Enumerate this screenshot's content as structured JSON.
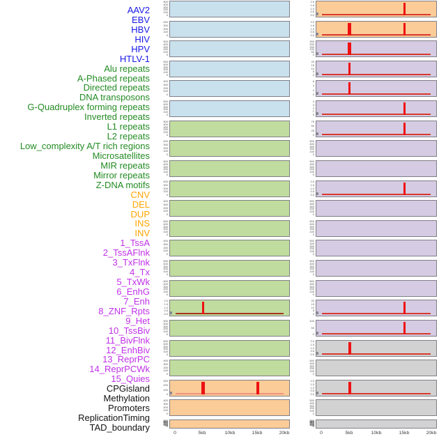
{
  "chart_data": {
    "type": "line",
    "title": "",
    "description": "Multi-panel genomic feature profile figure: 44 row labels and two columns of 22 sparkline panels each, signal near zero with red peak spikes, x axis 0-20kb",
    "x_axis": {
      "ticks": [
        "0",
        "5kb",
        "10kb",
        "15kb",
        "20kb"
      ],
      "range_kb": [
        0,
        20
      ]
    },
    "group_colors": {
      "virus": "#1919e6",
      "repeat": "#228B22",
      "sv": "#FFA500",
      "chromatin": "#C030E8",
      "other": "#111111"
    },
    "panel_bg_colors": {
      "blue": "#c9e1ed",
      "green": "#c0dc9e",
      "orange": "#fbcb98",
      "purple": "#d5cbe2",
      "gray": "#d2d2d2"
    },
    "spike_color": "#ee1111",
    "row_labels": [
      {
        "text": "AAV2",
        "group": "virus"
      },
      {
        "text": "EBV",
        "group": "virus"
      },
      {
        "text": "HBV",
        "group": "virus"
      },
      {
        "text": "HIV",
        "group": "virus"
      },
      {
        "text": "HPV",
        "group": "virus"
      },
      {
        "text": "HTLV-1",
        "group": "virus"
      },
      {
        "text": "Alu repeats",
        "group": "repeat"
      },
      {
        "text": "A-Phased repeats",
        "group": "repeat"
      },
      {
        "text": "Directed repeats",
        "group": "repeat"
      },
      {
        "text": "DNA transposons",
        "group": "repeat"
      },
      {
        "text": "G-Quadruplex forming repeats",
        "group": "repeat"
      },
      {
        "text": "Inverted repeats",
        "group": "repeat"
      },
      {
        "text": "L1 repeats",
        "group": "repeat"
      },
      {
        "text": "L2 repeats",
        "group": "repeat"
      },
      {
        "text": "Low_complexity A/T rich regions",
        "group": "repeat"
      },
      {
        "text": "Microsatellites",
        "group": "repeat"
      },
      {
        "text": "MIR repeats",
        "group": "repeat"
      },
      {
        "text": "Mirror repeats",
        "group": "repeat"
      },
      {
        "text": "Z-DNA motifs",
        "group": "repeat"
      },
      {
        "text": "CNV",
        "group": "sv"
      },
      {
        "text": "DEL",
        "group": "sv"
      },
      {
        "text": "DUP",
        "group": "sv"
      },
      {
        "text": "INS",
        "group": "sv"
      },
      {
        "text": "INV",
        "group": "sv"
      },
      {
        "text": "1_TssA",
        "group": "chromatin"
      },
      {
        "text": "2_TssAFlnk",
        "group": "chromatin"
      },
      {
        "text": "3_TxFlnk",
        "group": "chromatin"
      },
      {
        "text": "4_Tx",
        "group": "chromatin"
      },
      {
        "text": "5_TxWk",
        "group": "chromatin"
      },
      {
        "text": "6_EnhG",
        "group": "chromatin"
      },
      {
        "text": "7_Enh",
        "group": "chromatin"
      },
      {
        "text": "8_ZNF_Rpts",
        "group": "chromatin"
      },
      {
        "text": "9_Het",
        "group": "chromatin"
      },
      {
        "text": "10_TssBiv",
        "group": "chromatin"
      },
      {
        "text": "11_BivFlnk",
        "group": "chromatin"
      },
      {
        "text": "12_EnhBiv",
        "group": "chromatin"
      },
      {
        "text": "13_ReprPC",
        "group": "chromatin"
      },
      {
        "text": "14_ReprPCWk",
        "group": "chromatin"
      },
      {
        "text": "15_Quies",
        "group": "chromatin"
      },
      {
        "text": "CPGisland",
        "group": "other"
      },
      {
        "text": "Methylation",
        "group": "other"
      },
      {
        "text": "Promoters",
        "group": "other"
      },
      {
        "text": "ReplicationTiming",
        "group": "other"
      },
      {
        "text": "TAD_boundary",
        "group": "other"
      }
    ],
    "columns": [
      {
        "name": "left",
        "panels": [
          {
            "bg": "blue",
            "y_ticks": [
              "500",
              "400",
              "300",
              "200",
              "100",
              "0"
            ],
            "baseline": null,
            "spikes": []
          },
          {
            "bg": "blue",
            "y_ticks": [
              "400",
              "300",
              "200",
              "100",
              "0"
            ],
            "baseline": null,
            "spikes": []
          },
          {
            "bg": "blue",
            "y_ticks": [
              "500",
              "400",
              "300",
              "200",
              "100",
              "0"
            ],
            "baseline": null,
            "spikes": []
          },
          {
            "bg": "blue",
            "y_ticks": [
              "500",
              "400",
              "300",
              "200",
              "100",
              "0"
            ],
            "baseline": null,
            "spikes": []
          },
          {
            "bg": "blue",
            "y_ticks": [
              "400",
              "300",
              "200",
              "100",
              "0"
            ],
            "baseline": null,
            "spikes": []
          },
          {
            "bg": "blue",
            "y_ticks": [
              "500",
              "400",
              "300",
              "200",
              "100",
              "0"
            ],
            "baseline": null,
            "spikes": []
          },
          {
            "bg": "green",
            "y_ticks": [
              "500",
              "400",
              "300",
              "200",
              "100",
              "0"
            ],
            "baseline": null,
            "spikes": []
          },
          {
            "bg": "green",
            "y_ticks": [
              "400",
              "300",
              "200",
              "100",
              "0"
            ],
            "baseline": null,
            "spikes": []
          },
          {
            "bg": "green",
            "y_ticks": [
              "500",
              "400",
              "300",
              "200",
              "100",
              "0"
            ],
            "baseline": null,
            "spikes": []
          },
          {
            "bg": "green",
            "y_ticks": [
              "400",
              "300",
              "200",
              "100",
              "0"
            ],
            "baseline": null,
            "spikes": []
          },
          {
            "bg": "green",
            "y_ticks": [
              "400",
              "300",
              "200",
              "100",
              "0"
            ],
            "baseline": null,
            "spikes": []
          },
          {
            "bg": "green",
            "y_ticks": [
              "500",
              "400",
              "300",
              "200",
              "100",
              "0"
            ],
            "baseline": null,
            "spikes": []
          },
          {
            "bg": "green",
            "y_ticks": [
              "400",
              "300",
              "200",
              "100",
              "0"
            ],
            "baseline": null,
            "spikes": []
          },
          {
            "bg": "green",
            "y_ticks": [
              "500",
              "400",
              "300",
              "200",
              "100",
              "0"
            ],
            "baseline": null,
            "spikes": []
          },
          {
            "bg": "green",
            "y_ticks": [
              "500",
              "400",
              "300",
              "200",
              "100",
              "0"
            ],
            "baseline": null,
            "spikes": []
          },
          {
            "bg": "green",
            "y_ticks": [
              "2.0",
              "1.5",
              "1.0",
              "0.5",
              "0.0"
            ],
            "baseline": "#a93323",
            "spikes": [
              {
                "kb": 5,
                "w": 3
              }
            ]
          },
          {
            "bg": "green",
            "y_ticks": [
              "500",
              "400",
              "300",
              "200",
              "100",
              "0"
            ],
            "baseline": null,
            "spikes": []
          },
          {
            "bg": "green",
            "y_ticks": [
              "500",
              "400",
              "300",
              "200",
              "100",
              "0"
            ],
            "baseline": null,
            "spikes": []
          },
          {
            "bg": "green",
            "y_ticks": [
              "400",
              "300",
              "200",
              "100",
              "0"
            ],
            "baseline": null,
            "spikes": []
          },
          {
            "bg": "orange",
            "y_ticks": [
              "300",
              "200",
              "100",
              "0"
            ],
            "baseline": "#f0907e",
            "spikes": [
              {
                "kb": 5,
                "w": 5
              },
              {
                "kb": 15,
                "w": 4
              }
            ]
          },
          {
            "bg": "orange",
            "y_ticks": [
              "400",
              "300",
              "200",
              "100",
              "0"
            ],
            "baseline": null,
            "spikes": []
          },
          {
            "bg": "orange",
            "y_ticks": [
              "500",
              "450",
              "400",
              "350",
              "300",
              "250",
              "200",
              "150",
              "100",
              "50",
              "0"
            ],
            "baseline": null,
            "spikes": []
          }
        ]
      },
      {
        "name": "right",
        "panels": [
          {
            "bg": "orange",
            "y_ticks": [
              "2.0",
              "1.5",
              "1.0",
              "0.5",
              "0.0"
            ],
            "baseline": "#d8392b",
            "spikes": [
              {
                "kb": 15,
                "w": 2.5
              }
            ]
          },
          {
            "bg": "orange",
            "y_ticks": [
              "2.0",
              "1.5",
              "1.0",
              "0.5",
              "0.0"
            ],
            "baseline": "#d8392b",
            "spikes": [
              {
                "kb": 5,
                "w": 5
              },
              {
                "kb": 15,
                "w": 3.5
              }
            ]
          },
          {
            "bg": "purple",
            "y_ticks": [
              "250",
              "200",
              "150",
              "100",
              "50",
              "0"
            ],
            "baseline": "#d8392b",
            "spikes": [
              {
                "kb": 5,
                "w": 5
              }
            ]
          },
          {
            "bg": "purple",
            "y_ticks": [
              "20",
              "15",
              "10",
              "5",
              "0"
            ],
            "baseline": "#d8392b",
            "spikes": [
              {
                "kb": 5,
                "w": 3
              }
            ]
          },
          {
            "bg": "purple",
            "y_ticks": [
              "6",
              "4",
              "2",
              "0"
            ],
            "baseline": "#d8392b",
            "spikes": [
              {
                "kb": 5,
                "w": 3.5
              }
            ]
          },
          {
            "bg": "purple",
            "y_ticks": [
              "4",
              "3",
              "2",
              "1",
              "0"
            ],
            "baseline": "#d8392b",
            "spikes": [
              {
                "kb": 15,
                "w": 3.5
              }
            ]
          },
          {
            "bg": "purple",
            "y_ticks": [
              "75",
              "50",
              "25",
              "0"
            ],
            "baseline": "#d8392b",
            "spikes": [
              {
                "kb": 15,
                "w": 3.5
              }
            ]
          },
          {
            "bg": "purple",
            "y_ticks": [
              "500",
              "400",
              "300",
              "200",
              "100",
              "0"
            ],
            "baseline": null,
            "spikes": []
          },
          {
            "bg": "purple",
            "y_ticks": [
              "500",
              "400",
              "300",
              "200",
              "100",
              "0"
            ],
            "baseline": null,
            "spikes": []
          },
          {
            "bg": "purple",
            "y_ticks": [
              "2.0",
              "1.5",
              "1.0",
              "0.5",
              "0.0"
            ],
            "baseline": "#d8392b",
            "spikes": [
              {
                "kb": 15,
                "w": 3
              }
            ]
          },
          {
            "bg": "purple",
            "y_ticks": [
              "500",
              "400",
              "300",
              "200",
              "100",
              "0"
            ],
            "baseline": null,
            "spikes": []
          },
          {
            "bg": "purple",
            "y_ticks": [
              "500",
              "400",
              "300",
              "200",
              "100",
              "0"
            ],
            "baseline": null,
            "spikes": []
          },
          {
            "bg": "purple",
            "y_ticks": [
              "500",
              "400",
              "300",
              "200",
              "100",
              "0"
            ],
            "baseline": null,
            "spikes": []
          },
          {
            "bg": "purple",
            "y_ticks": [
              "500",
              "400",
              "300",
              "200",
              "100",
              "0"
            ],
            "baseline": null,
            "spikes": []
          },
          {
            "bg": "purple",
            "y_ticks": [
              "500",
              "400",
              "300",
              "200",
              "100",
              "0"
            ],
            "baseline": null,
            "spikes": []
          },
          {
            "bg": "purple",
            "y_ticks": [
              "20",
              "15",
              "10",
              "5",
              "0"
            ],
            "baseline": "#d8392b",
            "spikes": [
              {
                "kb": 15,
                "w": 3.5
              }
            ]
          },
          {
            "bg": "purple",
            "y_ticks": [
              "100",
              "50",
              "0"
            ],
            "baseline": "#d8392b",
            "spikes": [
              {
                "kb": 15,
                "w": 3.5
              }
            ]
          },
          {
            "bg": "gray",
            "y_ticks": [
              "2.0",
              "1.5",
              "1.0",
              "0.5",
              "0.0"
            ],
            "baseline": "#d8392b",
            "spikes": [
              {
                "kb": 5,
                "w": 4
              }
            ]
          },
          {
            "bg": "gray",
            "y_ticks": [
              "500",
              "400",
              "300",
              "200",
              "100",
              "0"
            ],
            "baseline": null,
            "spikes": []
          },
          {
            "bg": "gray",
            "y_ticks": [
              "2.0",
              "1.5",
              "1.0",
              "0.5",
              "0.0"
            ],
            "baseline": "#d8392b",
            "spikes": [
              {
                "kb": 5,
                "w": 4
              }
            ]
          },
          {
            "bg": "gray",
            "y_ticks": [
              "500",
              "400",
              "300",
              "200",
              "100",
              "0"
            ],
            "baseline": null,
            "spikes": []
          },
          {
            "bg": "gray",
            "y_ticks": [
              "500",
              "450",
              "400",
              "350",
              "300",
              "250",
              "200",
              "150",
              "100",
              "50",
              "0"
            ],
            "baseline": null,
            "spikes": []
          }
        ]
      }
    ]
  }
}
